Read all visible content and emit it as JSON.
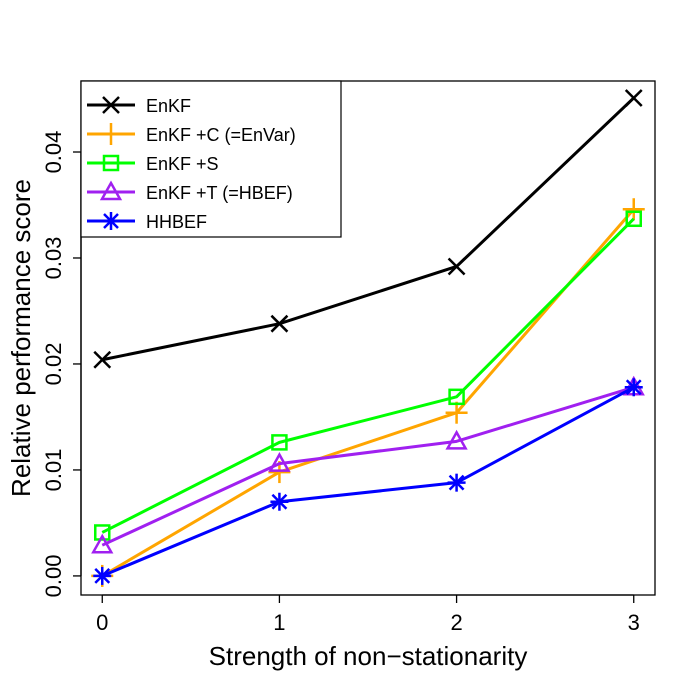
{
  "chart_data": {
    "type": "line",
    "title": "",
    "xlabel": "Strength of non−stationarity",
    "ylabel": "Relative performance score",
    "x": [
      0,
      1,
      2,
      3
    ],
    "xticks": [
      "0",
      "1",
      "2",
      "3"
    ],
    "yticks": [
      "0.00",
      "0.01",
      "0.02",
      "0.03",
      "0.04"
    ],
    "xlim": [
      -0.12,
      3.12
    ],
    "ylim": [
      -0.0018,
      0.0467
    ],
    "grid": false,
    "legend_position": "top-left",
    "series": [
      {
        "name": "EnKF",
        "color": "#000000",
        "marker": "x",
        "values": [
          0.0204,
          0.0238,
          0.0292,
          0.0451
        ]
      },
      {
        "name": "EnKF +C (=EnVar)",
        "color": "#FFA500",
        "marker": "plus",
        "values": [
          0.0,
          0.0098,
          0.0154,
          0.0346
        ]
      },
      {
        "name": "EnKF +S",
        "color": "#00FF00",
        "marker": "square",
        "values": [
          0.0041,
          0.0126,
          0.0169,
          0.0337
        ]
      },
      {
        "name": "EnKF +T (=HBEF)",
        "color": "#A020F0",
        "marker": "triangle",
        "values": [
          0.0029,
          0.0106,
          0.0127,
          0.0178
        ]
      },
      {
        "name": "HHBEF",
        "color": "#0000FF",
        "marker": "asterisk",
        "values": [
          0.0,
          0.007,
          0.0088,
          0.0178
        ]
      }
    ]
  }
}
